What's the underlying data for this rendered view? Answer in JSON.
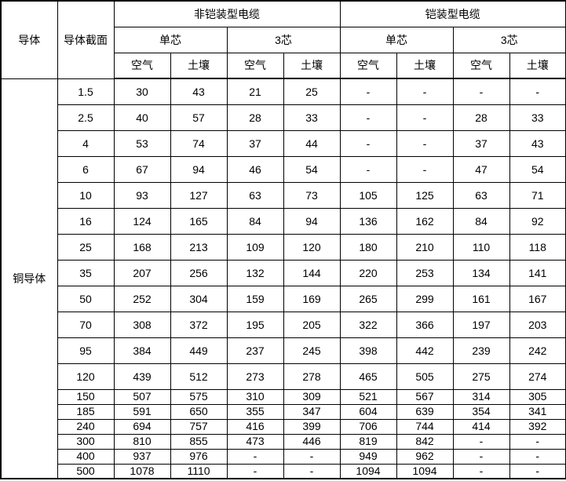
{
  "headers": {
    "conductor": "导体",
    "cross_section": "导体截面",
    "non_armored": "非铠装型电缆",
    "armored": "铠装型电缆",
    "single_core": "单芯",
    "three_core": "3芯",
    "air": "空气",
    "soil": "土壤"
  },
  "conductor_type": "铜导体",
  "rows": [
    {
      "section": "1.5",
      "values": [
        "30",
        "43",
        "21",
        "25",
        "-",
        "-",
        "-",
        "-"
      ]
    },
    {
      "section": "2.5",
      "values": [
        "40",
        "57",
        "28",
        "33",
        "-",
        "-",
        "28",
        "33"
      ]
    },
    {
      "section": "4",
      "values": [
        "53",
        "74",
        "37",
        "44",
        "-",
        "-",
        "37",
        "43"
      ]
    },
    {
      "section": "6",
      "values": [
        "67",
        "94",
        "46",
        "54",
        "-",
        "-",
        "47",
        "54"
      ]
    },
    {
      "section": "10",
      "values": [
        "93",
        "127",
        "63",
        "73",
        "105",
        "125",
        "63",
        "71"
      ]
    },
    {
      "section": "16",
      "values": [
        "124",
        "165",
        "84",
        "94",
        "136",
        "162",
        "84",
        "92"
      ]
    },
    {
      "section": "25",
      "values": [
        "168",
        "213",
        "109",
        "120",
        "180",
        "210",
        "110",
        "118"
      ]
    },
    {
      "section": "35",
      "values": [
        "207",
        "256",
        "132",
        "144",
        "220",
        "253",
        "134",
        "141"
      ]
    },
    {
      "section": "50",
      "values": [
        "252",
        "304",
        "159",
        "169",
        "265",
        "299",
        "161",
        "167"
      ]
    },
    {
      "section": "70",
      "values": [
        "308",
        "372",
        "195",
        "205",
        "322",
        "366",
        "197",
        "203"
      ]
    },
    {
      "section": "95",
      "values": [
        "384",
        "449",
        "237",
        "245",
        "398",
        "442",
        "239",
        "242"
      ]
    },
    {
      "section": "120",
      "values": [
        "439",
        "512",
        "273",
        "278",
        "465",
        "505",
        "275",
        "274"
      ]
    },
    {
      "section": "150",
      "values": [
        "507",
        "575",
        "310",
        "309",
        "521",
        "567",
        "314",
        "305"
      ]
    },
    {
      "section": "185",
      "values": [
        "591",
        "650",
        "355",
        "347",
        "604",
        "639",
        "354",
        "341"
      ]
    },
    {
      "section": "240",
      "values": [
        "694",
        "757",
        "416",
        "399",
        "706",
        "744",
        "414",
        "392"
      ]
    },
    {
      "section": "300",
      "values": [
        "810",
        "855",
        "473",
        "446",
        "819",
        "842",
        "-",
        "-"
      ]
    },
    {
      "section": "400",
      "values": [
        "937",
        "976",
        "-",
        "-",
        "949",
        "962",
        "-",
        "-"
      ]
    },
    {
      "section": "500",
      "values": [
        "1078",
        "1110",
        "-",
        "-",
        "1094",
        "1094",
        "-",
        "-"
      ]
    }
  ]
}
